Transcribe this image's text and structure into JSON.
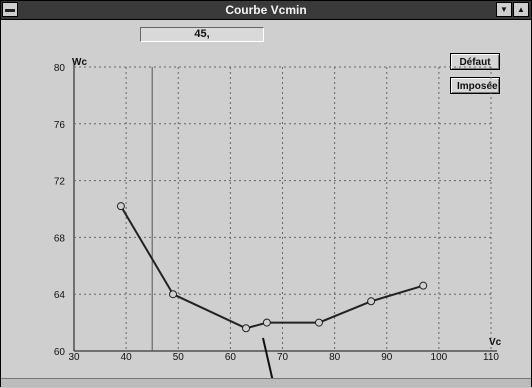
{
  "window": {
    "title": "Courbe Vcmin"
  },
  "readout": {
    "value": "45,"
  },
  "buttons": {
    "default_label": "Défaut",
    "imposed_label": "Imposée"
  },
  "icons": {
    "system_menu": "system-menu-icon",
    "minimize": "minimize-icon",
    "maximize": "maximize-icon"
  },
  "chart_data": {
    "type": "line",
    "xlabel": "Vc",
    "ylabel": "Wc",
    "xlim": [
      30,
      110
    ],
    "ylim": [
      60,
      80
    ],
    "xticks": [
      30,
      40,
      50,
      60,
      70,
      80,
      90,
      100,
      110
    ],
    "yticks": [
      60,
      64,
      68,
      72,
      76,
      80
    ],
    "grid": true,
    "cursor_x": 45,
    "series": [
      {
        "x": [
          39,
          49,
          63,
          67,
          77,
          87,
          97
        ],
        "y": [
          70.2,
          64.0,
          61.6,
          62.0,
          62.0,
          63.5,
          64.6
        ]
      }
    ],
    "colors": {
      "line": "#222222",
      "marker": "#222222",
      "grid": "#666666"
    }
  }
}
